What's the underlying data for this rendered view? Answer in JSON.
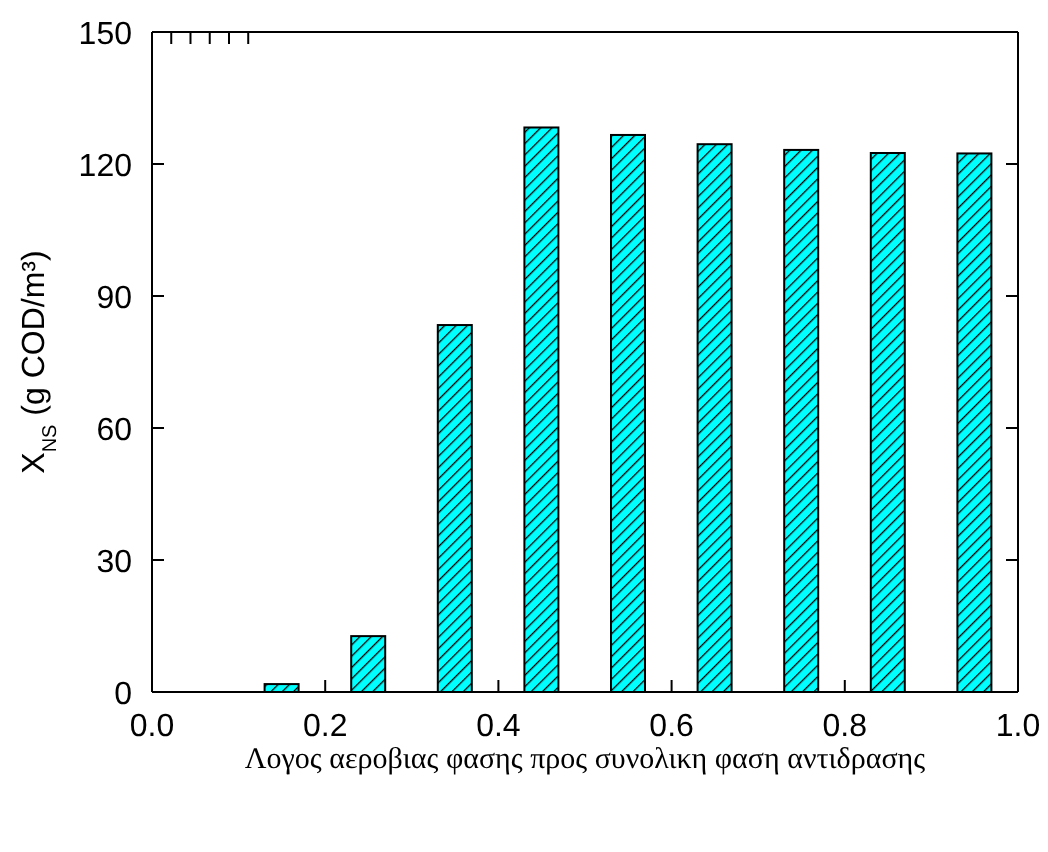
{
  "chart_data": {
    "type": "bar",
    "xlabel": "Λογος αεροβιας φασης προς συνολικη φαση αντιδρασης",
    "ylabel": "X$_{NS}$  (g COD/m³)",
    "x": [
      0.05,
      0.15,
      0.25,
      0.35,
      0.45,
      0.55,
      0.65,
      0.75,
      0.85,
      0.95
    ],
    "values": [
      0,
      1.8,
      12.7,
      83.4,
      128.3,
      126.6,
      124.5,
      123.2,
      122.5,
      122.4
    ],
    "color": "#00ffff",
    "xlim": [
      0,
      1
    ],
    "xticks": [
      {
        "value": 0,
        "label": "0.0"
      },
      0.2,
      0.4,
      0.6,
      0.8,
      {
        "value": 1,
        "label": "1.0"
      }
    ],
    "ylim": [
      0,
      150
    ],
    "yticks": [
      0,
      30,
      60,
      90,
      120,
      150
    ],
    "grid": false
  }
}
